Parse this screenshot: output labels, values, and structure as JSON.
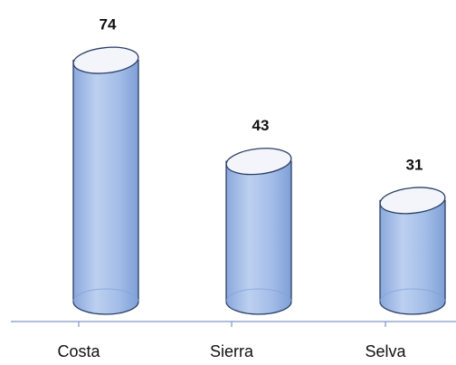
{
  "chart_data": {
    "type": "bar",
    "style": "cylinder",
    "categories": [
      "Costa",
      "Sierra",
      "Selva"
    ],
    "values": [
      74,
      43,
      31
    ],
    "data_labels": [
      "74",
      "43",
      "31"
    ],
    "grid": false,
    "legend": "none",
    "colors": {
      "bar_fill": "#a9c3ea",
      "bar_dark": "#7f9fd6",
      "bar_edge": "#2b3f66",
      "top_fill": "#f3f5fb",
      "axis": "#7a96c8"
    }
  }
}
